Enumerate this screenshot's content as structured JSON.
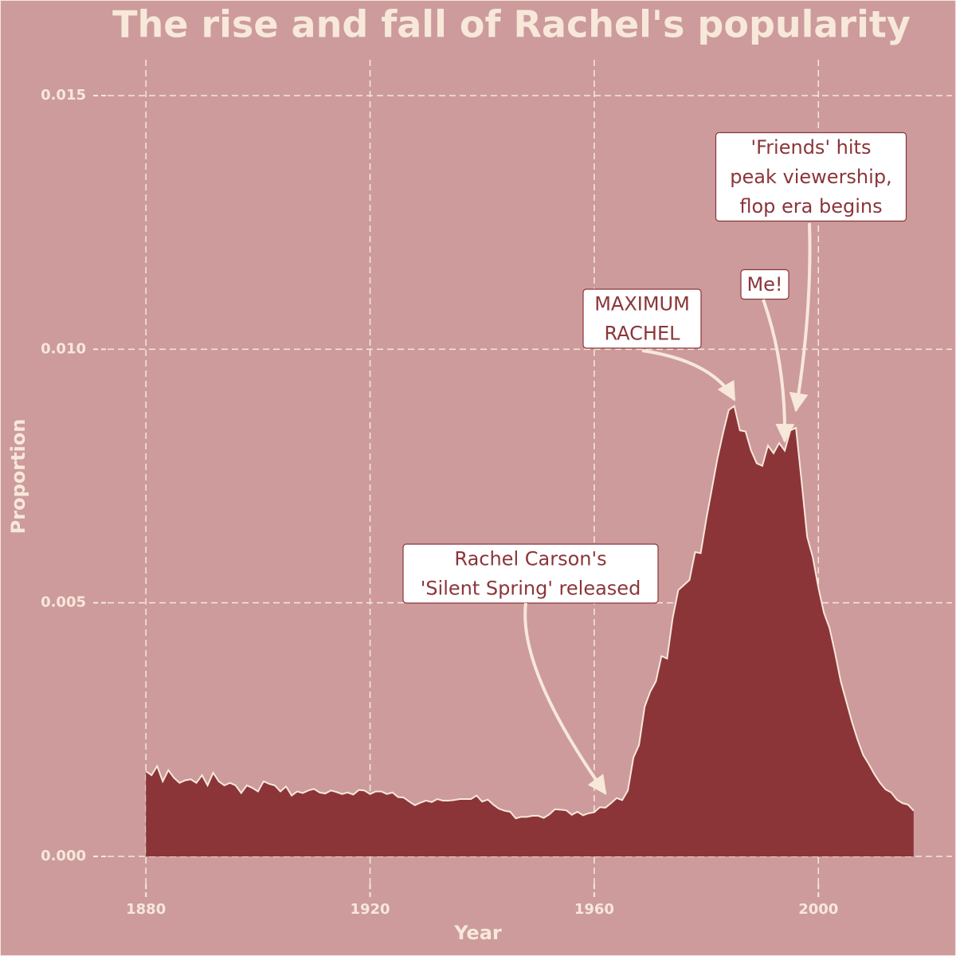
{
  "chart_data": {
    "type": "area",
    "title": "The rise and fall of Rachel's popularity",
    "x_label": "Year",
    "y_label": "Proportion",
    "x": [
      1880,
      1881,
      1882,
      1883,
      1884,
      1885,
      1886,
      1887,
      1888,
      1889,
      1890,
      1891,
      1892,
      1893,
      1894,
      1895,
      1896,
      1897,
      1898,
      1899,
      1900,
      1901,
      1902,
      1903,
      1904,
      1905,
      1906,
      1907,
      1908,
      1909,
      1910,
      1911,
      1912,
      1913,
      1914,
      1915,
      1916,
      1917,
      1918,
      1919,
      1920,
      1921,
      1922,
      1923,
      1924,
      1925,
      1926,
      1927,
      1928,
      1929,
      1930,
      1931,
      1932,
      1933,
      1934,
      1935,
      1936,
      1937,
      1938,
      1939,
      1940,
      1941,
      1942,
      1943,
      1944,
      1945,
      1946,
      1947,
      1948,
      1949,
      1950,
      1951,
      1952,
      1953,
      1954,
      1955,
      1956,
      1957,
      1958,
      1959,
      1960,
      1961,
      1962,
      1963,
      1964,
      1965,
      1966,
      1967,
      1968,
      1969,
      1970,
      1971,
      1972,
      1973,
      1974,
      1975,
      1976,
      1977,
      1978,
      1979,
      1980,
      1981,
      1982,
      1983,
      1984,
      1985,
      1986,
      1987,
      1988,
      1989,
      1990,
      1991,
      1992,
      1993,
      1994,
      1995,
      1996,
      1997,
      1998,
      1999,
      2000,
      2001,
      2002,
      2003,
      2004,
      2005,
      2006,
      2007,
      2008,
      2009,
      2010,
      2011,
      2012,
      2013,
      2014,
      2015,
      2016,
      2017
    ],
    "values": [
      0.00168,
      0.0016,
      0.00178,
      0.00148,
      0.0017,
      0.00155,
      0.00145,
      0.0015,
      0.00152,
      0.00145,
      0.0016,
      0.0014,
      0.00165,
      0.00148,
      0.0014,
      0.00145,
      0.0014,
      0.00125,
      0.0014,
      0.00135,
      0.00128,
      0.00148,
      0.00143,
      0.0014,
      0.00128,
      0.00138,
      0.0012,
      0.00128,
      0.00125,
      0.0013,
      0.00133,
      0.00126,
      0.00124,
      0.0013,
      0.00127,
      0.00123,
      0.00126,
      0.00122,
      0.00131,
      0.0013,
      0.00123,
      0.00128,
      0.00128,
      0.00123,
      0.00126,
      0.00117,
      0.00116,
      0.00108,
      0.00101,
      0.00106,
      0.0011,
      0.00107,
      0.00113,
      0.0011,
      0.0011,
      0.00111,
      0.00113,
      0.00113,
      0.00113,
      0.0012,
      0.00108,
      0.00112,
      0.00102,
      0.00094,
      0.0009,
      0.00088,
      0.00075,
      0.00078,
      0.00078,
      0.0008,
      0.0008,
      0.00076,
      0.00083,
      0.00093,
      0.00092,
      0.00091,
      0.00082,
      0.00088,
      0.00081,
      0.00085,
      0.00087,
      0.00097,
      0.00096,
      0.00105,
      0.00115,
      0.00111,
      0.0013,
      0.00195,
      0.0022,
      0.00295,
      0.00325,
      0.00345,
      0.00395,
      0.0039,
      0.0047,
      0.00525,
      0.00535,
      0.00545,
      0.006,
      0.00598,
      0.00665,
      0.00725,
      0.00785,
      0.00835,
      0.0088,
      0.00888,
      0.0084,
      0.00838,
      0.008,
      0.00775,
      0.0077,
      0.0081,
      0.00795,
      0.00815,
      0.008,
      0.0084,
      0.00845,
      0.0074,
      0.0063,
      0.0059,
      0.0053,
      0.0048,
      0.0045,
      0.004,
      0.00345,
      0.00305,
      0.00265,
      0.0023,
      0.002,
      0.00182,
      0.00162,
      0.00145,
      0.00132,
      0.00126,
      0.00112,
      0.00105,
      0.00102,
      0.0009
    ],
    "color": "#8b3539",
    "line_color": "#f7e8da",
    "xlim": [
      1873.15,
      2023.85
    ],
    "ylim": [
      -0.00055,
      0.0161
    ],
    "xticks": [
      1880,
      1920,
      1960,
      2000
    ],
    "yticks": [
      {
        "value": 0,
        "label": "0.000"
      },
      0.005,
      {
        "value": 0.01,
        "label": "0.010"
      },
      0.015
    ],
    "grid": true,
    "annotations": [
      {
        "lines": [
          "Rachel Carson's",
          "'Silent Spring' released"
        ],
        "x": 1962
      },
      {
        "lines": [
          "MAXIMUM",
          "RACHEL"
        ],
        "x": 1985
      },
      {
        "lines": [
          "Me!"
        ],
        "x": 1994
      },
      {
        "lines": [
          "'Friends' hits",
          "peak viewership,",
          "flop era begins"
        ],
        "x": 1996
      }
    ]
  }
}
